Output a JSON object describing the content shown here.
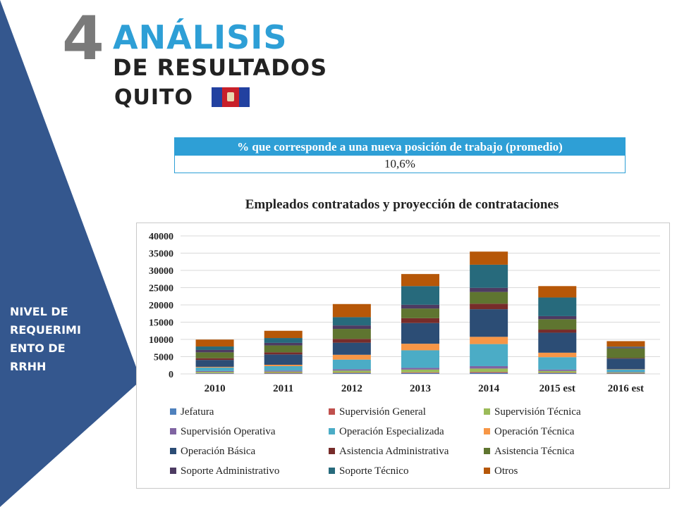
{
  "header": {
    "number": "4",
    "title": "ANÁLISIS",
    "subtitle": "DE RESULTADOS",
    "city": "QUITO"
  },
  "sidebar": {
    "lines": [
      "NIVEL DE",
      "REQUERIMI",
      "ENTO DE",
      "RRHH"
    ],
    "color": "#34578e"
  },
  "position_table": {
    "header": "% que corresponde a una nueva posición de trabajo (promedio)",
    "value": "10,6%"
  },
  "chart_data": {
    "type": "bar",
    "stacked": true,
    "title": "Empleados contratados y proyección de contrataciones",
    "xlabel": "",
    "ylabel": "",
    "ylim": [
      0,
      40000
    ],
    "yticks": [
      "40000",
      "35000",
      "30000",
      "25000",
      "20000",
      "15000",
      "10000",
      "5000",
      "0"
    ],
    "grid": true,
    "legend_position": "bottom",
    "categories": [
      "2010",
      "2011",
      "2012",
      "2013",
      "2014",
      "2015 est",
      "2016 est"
    ],
    "series": [
      {
        "name": "Jefatura",
        "color": "#4f81bd",
        "values": [
          150,
          150,
          200,
          250,
          300,
          200,
          100
        ]
      },
      {
        "name": "Supervisión General",
        "color": "#c0504d",
        "values": [
          100,
          150,
          150,
          200,
          250,
          150,
          100
        ]
      },
      {
        "name": "Supervisión Técnica",
        "color": "#9bbb59",
        "values": [
          350,
          350,
          600,
          800,
          1000,
          500,
          200
        ]
      },
      {
        "name": "Supervisión Operativa",
        "color": "#8064a2",
        "values": [
          250,
          300,
          400,
          500,
          700,
          400,
          150
        ]
      },
      {
        "name": "Operación Especializada",
        "color": "#4bacc6",
        "values": [
          1000,
          1300,
          2800,
          5100,
          6400,
          3600,
          700
        ]
      },
      {
        "name": "Operación Técnica",
        "color": "#f79646",
        "values": [
          200,
          400,
          1400,
          1900,
          2100,
          1300,
          100
        ]
      },
      {
        "name": "Operación Básica",
        "color": "#2c4d75",
        "values": [
          2000,
          3000,
          3500,
          6000,
          8000,
          5800,
          3100
        ]
      },
      {
        "name": "Asistencia Administrativa",
        "color": "#772c2a",
        "values": [
          500,
          600,
          1100,
          1400,
          1600,
          900,
          150
        ]
      },
      {
        "name": "Asistencia Técnica",
        "color": "#5f7530",
        "values": [
          1700,
          2000,
          2900,
          2800,
          3400,
          3000,
          2800
        ]
      },
      {
        "name": "Soporte Administrativo",
        "color": "#4d3b62",
        "values": [
          700,
          750,
          1000,
          1100,
          1200,
          900,
          300
        ]
      },
      {
        "name": "Soporte Técnico",
        "color": "#276a7c",
        "values": [
          1000,
          1400,
          2400,
          5400,
          6700,
          5400,
          200
        ]
      },
      {
        "name": "Otros",
        "color": "#b65708",
        "values": [
          2000,
          2100,
          3800,
          3500,
          3800,
          3300,
          1600
        ]
      }
    ]
  }
}
